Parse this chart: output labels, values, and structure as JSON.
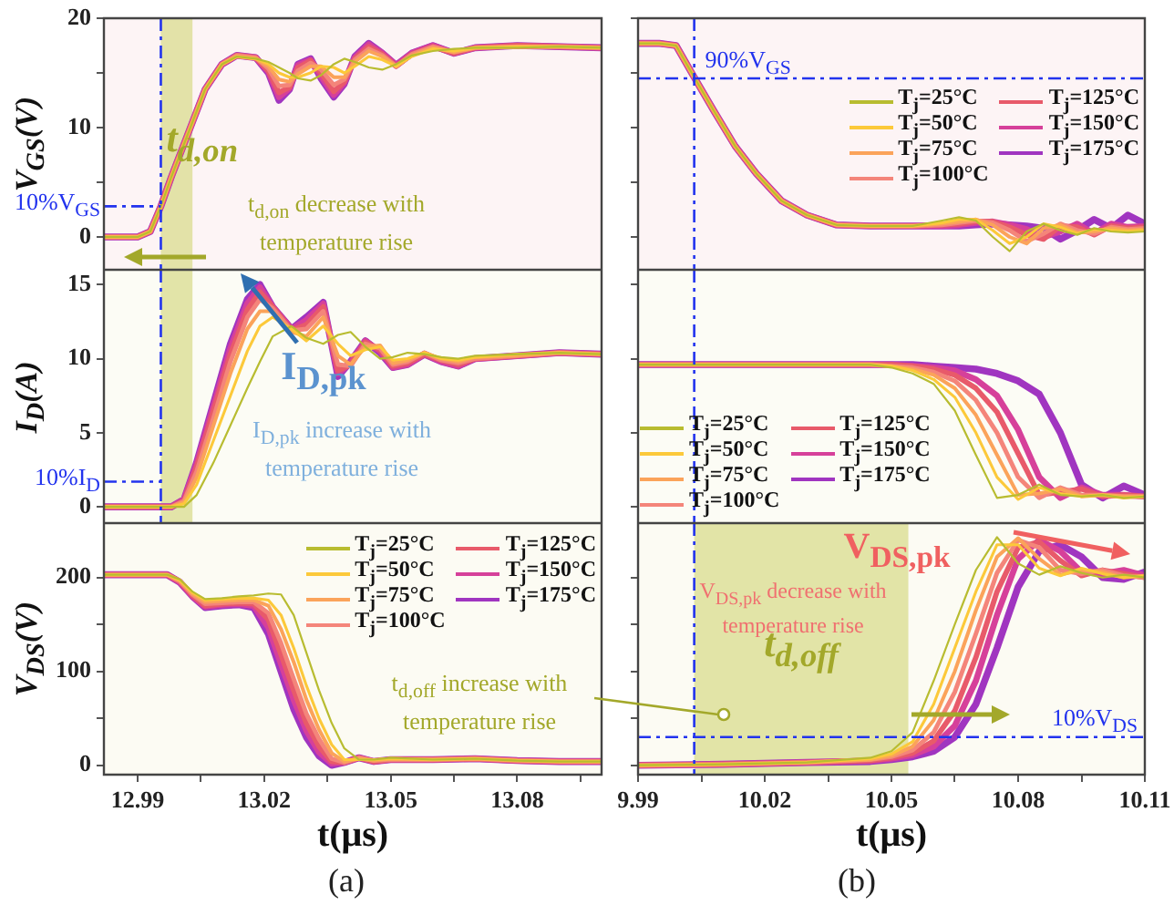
{
  "chart_data": [
    {
      "type": "line",
      "ylabel": "V$_{GS}$(V)",
      "tick_labels": "y",
      "xlim": [
        12.982,
        13.1
      ],
      "xticks": [
        12.99,
        {
          "value": 13.005,
          "label": null
        },
        13.02,
        {
          "value": 13.035,
          "label": null
        },
        13.05,
        {
          "value": 13.065,
          "label": null
        },
        13.08,
        {
          "value": 13.095,
          "label": null
        }
      ],
      "ylim": [
        -3,
        20
      ],
      "yticks": [
        0,
        {
          "value": 5,
          "label": null
        },
        10,
        {
          "value": 15,
          "label": null
        },
        20
      ],
      "x": [
        12.982,
        12.99,
        12.993,
        12.9955,
        12.998,
        13.0005,
        13.003,
        13.006,
        13.01,
        13.0135,
        13.018,
        13.021,
        13.0235,
        13.026,
        13.028,
        13.031,
        13.0335,
        13.0365,
        13.039,
        13.0415,
        13.0448,
        13.048,
        13.0513,
        13.055,
        13.06,
        13.065,
        13.07,
        13.08,
        13.09,
        13.1
      ],
      "series": [
        {
          "color": "#b8bc30",
          "values": [
            0,
            0,
            0.5,
            2.8,
            5.5,
            8,
            10.5,
            13.5,
            15.8,
            16.5,
            16.3,
            16,
            15.5,
            15,
            14.5,
            14.3,
            14.8,
            15.8,
            16.3,
            16,
            15.5,
            15.3,
            15.8,
            16.6,
            17,
            17.2,
            17.3,
            17.3,
            17.4,
            17.3
          ]
        },
        {
          "color": "#fcc93a",
          "values": [
            0,
            0,
            0.5,
            2.8,
            5.5,
            8,
            10.5,
            13.5,
            15.8,
            16.5,
            16.3,
            15.8,
            15,
            14.6,
            14.6,
            15,
            15.6,
            15.5,
            15,
            15.6,
            16.5,
            16.2,
            15.6,
            16.5,
            17.2,
            17,
            17.3,
            17.4,
            17.4,
            17.3
          ]
        },
        {
          "color": "#fba35a",
          "values": [
            0,
            0,
            0.5,
            2.8,
            5.5,
            8,
            10.5,
            13.5,
            15.8,
            16.5,
            16.3,
            15.6,
            14.4,
            14.2,
            14.9,
            15.6,
            15.6,
            14.6,
            14.6,
            16,
            17,
            16.5,
            15.6,
            16.6,
            17.3,
            16.9,
            17.3,
            17.4,
            17.4,
            17.3
          ]
        },
        {
          "color": "#f4857a",
          "values": [
            0,
            0,
            0.5,
            2.8,
            5.5,
            8,
            10.5,
            13.5,
            15.8,
            16.6,
            16.4,
            15.4,
            13.8,
            13.9,
            15.2,
            15.9,
            15.3,
            13.9,
            14.4,
            16.2,
            17.2,
            16.6,
            15.6,
            16.7,
            17.4,
            16.9,
            17.3,
            17.4,
            17.4,
            17.3
          ]
        },
        {
          "color": "#e85a6a",
          "values": [
            0,
            0,
            0.5,
            2.8,
            5.5,
            8,
            10.5,
            13.5,
            15.8,
            16.6,
            16.4,
            15.2,
            13.2,
            13.7,
            15.5,
            16.1,
            15,
            13.3,
            14.2,
            16.3,
            17.4,
            16.7,
            15.6,
            16.7,
            17.4,
            16.8,
            17.3,
            17.5,
            17.4,
            17.3
          ]
        },
        {
          "color": "#d6409a",
          "values": [
            0,
            0,
            0.5,
            2.8,
            5.5,
            8,
            10.5,
            13.5,
            15.8,
            16.6,
            16.4,
            15.1,
            12.8,
            13.6,
            15.7,
            16.2,
            14.7,
            13,
            14.1,
            16.4,
            17.6,
            16.8,
            15.7,
            16.8,
            17.5,
            16.8,
            17.3,
            17.5,
            17.4,
            17.3
          ]
        },
        {
          "color": "#a035c0",
          "values": [
            0,
            0,
            0.5,
            2.8,
            5.5,
            8,
            10.5,
            13.5,
            15.8,
            16.6,
            16.4,
            15,
            12.5,
            13.5,
            15.8,
            16.3,
            14.5,
            12.8,
            14,
            16.5,
            17.7,
            16.8,
            15.7,
            16.8,
            17.5,
            16.8,
            17.3,
            17.5,
            17.4,
            17.3
          ]
        }
      ],
      "ref_lines": [
        {
          "axis": "y",
          "value": 2.8,
          "label": "10%V$_{GS}$",
          "color": "#2233ee",
          "line_style": "dashed"
        },
        {
          "axis": "x",
          "value": 12.9955,
          "color": "#2233ee",
          "line_style": "dashed"
        }
      ],
      "bands": [
        {
          "axis": "x",
          "from": 12.9955,
          "to": 13.003,
          "label": "t$_{d,on}$",
          "color": "#d9dc8e"
        }
      ],
      "annotations": [
        "t$_{d,on}$ decrease with temperature rise"
      ]
    },
    {
      "type": "line",
      "tick_labels": false,
      "legend": "top right",
      "xlim": [
        9.99,
        10.11
      ],
      "xticks": [
        9.99,
        {
          "value": 10.005,
          "label": null
        },
        10.02,
        {
          "value": 10.035,
          "label": null
        },
        10.05,
        {
          "value": 10.065,
          "label": null
        },
        10.08,
        {
          "value": 10.095,
          "label": null
        },
        10.11
      ],
      "ylim": [
        -3,
        20
      ],
      "yticks": [
        0,
        {
          "value": 5,
          "label": null
        },
        10,
        {
          "value": 15,
          "label": null
        },
        20
      ],
      "x": [
        9.99,
        9.995,
        9.999,
        10.003,
        10.008,
        10.013,
        10.018,
        10.024,
        10.03,
        10.037,
        10.045,
        10.055,
        10.062,
        10.066,
        10.07,
        10.074,
        10.078,
        10.082,
        10.086,
        10.09,
        10.094,
        10.098,
        10.102,
        10.106,
        10.11
      ],
      "series": [
        {
          "name": "T$_{j}$=25°C",
          "color": "#b8bc30",
          "values": [
            17.7,
            17.7,
            17.5,
            14.8,
            11.5,
            8.3,
            5.8,
            3.3,
            2,
            1.1,
            1,
            1,
            1.5,
            1.8,
            1.5,
            0,
            -1.3,
            0.5,
            1.2,
            0.6,
            0.2,
            0.8,
            0.5,
            0.4,
            0.5
          ]
        },
        {
          "name": "T$_{j}$=50°C",
          "color": "#fcc93a",
          "values": [
            17.7,
            17.7,
            17.5,
            14.8,
            11.5,
            8.3,
            5.8,
            3.3,
            2,
            1.1,
            1,
            1,
            1.3,
            1.6,
            1.6,
            0.6,
            -0.6,
            0,
            1.2,
            0.9,
            0.3,
            0.7,
            0.6,
            0.5,
            0.6
          ]
        },
        {
          "name": "T$_{j}$=75°C",
          "color": "#fba35a",
          "values": [
            17.7,
            17.7,
            17.5,
            14.8,
            11.5,
            8.3,
            5.8,
            3.3,
            2,
            1.1,
            1,
            1,
            1.2,
            1.4,
            1.6,
            1.1,
            0,
            -0.6,
            0.8,
            1.1,
            0.4,
            0.5,
            0.8,
            0.6,
            0.7
          ]
        },
        {
          "name": "T$_{j}$=100°C",
          "color": "#f4857a",
          "values": [
            17.7,
            17.7,
            17.5,
            14.8,
            11.5,
            8.3,
            5.8,
            3.3,
            2,
            1.1,
            1,
            1,
            1.1,
            1.3,
            1.5,
            1.3,
            0.6,
            -0.4,
            0.3,
            1.2,
            0.6,
            0.3,
            0.9,
            0.7,
            0.8
          ]
        },
        {
          "name": "T$_{j}$=125°C",
          "color": "#e85a6a",
          "values": [
            17.7,
            17.7,
            17.5,
            14.8,
            11.5,
            8.3,
            5.8,
            3.3,
            2,
            1.1,
            1,
            1,
            1.1,
            1.2,
            1.4,
            1.4,
            0.9,
            0.2,
            -0.2,
            1,
            0.9,
            0.2,
            1,
            0.8,
            0.9
          ]
        },
        {
          "name": "T$_{j}$=150°C",
          "color": "#d6409a",
          "values": [
            17.7,
            17.7,
            17.5,
            14.8,
            11.5,
            8.3,
            5.8,
            3.3,
            2,
            1.1,
            1,
            1,
            1,
            1.1,
            1.3,
            1.4,
            1.1,
            0.7,
            0,
            0.5,
            1.2,
            0.3,
            1.2,
            0.9,
            1
          ]
        },
        {
          "name": "T$_{j}$=175°C",
          "color": "#a035c0",
          "values": [
            17.7,
            17.7,
            17.5,
            14.8,
            11.5,
            8.3,
            5.8,
            3.3,
            2,
            1.1,
            1,
            1,
            1,
            1,
            1.1,
            1.2,
            1.1,
            1,
            0.8,
            -0.2,
            0.6,
            1.6,
            0.8,
            2,
            1.2
          ]
        }
      ],
      "ref_lines": [
        {
          "axis": "y",
          "value": 14.5,
          "label": "90%V$_{GS}$",
          "color": "#2233ee",
          "line_style": "dashed"
        },
        {
          "axis": "x",
          "value": 10.0033,
          "color": "#2233ee",
          "line_style": "dashed"
        }
      ]
    },
    {
      "type": "line",
      "ylabel": "I$_{D}$(A)",
      "tick_labels": "y",
      "xlim": [
        12.982,
        13.1
      ],
      "xticks": [
        12.99,
        {
          "value": 13.005,
          "label": null
        },
        13.02,
        {
          "value": 13.035,
          "label": null
        },
        13.05,
        {
          "value": 13.065,
          "label": null
        },
        13.08,
        {
          "value": 13.095,
          "label": null
        }
      ],
      "ylim": [
        -1.1,
        16
      ],
      "yticks": [
        0,
        5,
        10,
        15
      ],
      "x": [
        12.982,
        12.99,
        12.998,
        13.001,
        13.004,
        13.008,
        13.012,
        13.016,
        13.019,
        13.022,
        13.0265,
        13.03,
        13.034,
        13.0375,
        13.0405,
        13.044,
        13.0475,
        13.0505,
        13.054,
        13.058,
        13.062,
        13.066,
        13.07,
        13.08,
        13.09,
        13.1
      ],
      "series": [
        {
          "color": "#b8bc30",
          "values": [
            0,
            0,
            0,
            0,
            0.8,
            3,
            5.5,
            8,
            9.8,
            11.5,
            12.2,
            11.4,
            11,
            11.6,
            11.8,
            10.8,
            10,
            10.1,
            10.4,
            10.3,
            10.1,
            10,
            10.2,
            10.3,
            10.4,
            10.3
          ]
        },
        {
          "color": "#fcc93a",
          "values": [
            0,
            0,
            0,
            0.2,
            1.5,
            4.5,
            7.5,
            10.5,
            12.2,
            12.8,
            12,
            11.2,
            12.2,
            11,
            10.2,
            10.6,
            10.8,
            9.9,
            10,
            10.4,
            10,
            9.9,
            10.1,
            10.3,
            10.4,
            10.3
          ]
        },
        {
          "color": "#fba35a",
          "values": [
            0,
            0,
            0,
            0.3,
            2,
            5.5,
            9,
            12,
            13.2,
            13.2,
            11.8,
            11.5,
            12.8,
            10.2,
            9.6,
            10.8,
            10.9,
            9.7,
            9.9,
            10.4,
            10,
            9.8,
            10.1,
            10.2,
            10.4,
            10.3
          ]
        },
        {
          "color": "#f4857a",
          "values": [
            0,
            0,
            0,
            0.4,
            2.4,
            6,
            9.8,
            12.8,
            14,
            13.4,
            11.9,
            12,
            13.2,
            9.6,
            9.5,
            11,
            10.7,
            9.6,
            9.8,
            10.4,
            9.9,
            9.7,
            10,
            10.2,
            10.4,
            10.3
          ]
        },
        {
          "color": "#e85a6a",
          "values": [
            0,
            0,
            0,
            0.4,
            2.7,
            6.5,
            10.3,
            13.3,
            14.5,
            13.5,
            11.9,
            12.3,
            13.5,
            9.2,
            9.6,
            11.1,
            10.6,
            9.5,
            9.7,
            10.3,
            9.9,
            9.6,
            10,
            10.2,
            10.4,
            10.3
          ]
        },
        {
          "color": "#d6409a",
          "values": [
            0,
            0,
            0,
            0.5,
            2.9,
            6.8,
            10.7,
            13.7,
            14.8,
            13.5,
            12,
            12.6,
            13.7,
            9,
            9.7,
            11.2,
            10.5,
            9.4,
            9.6,
            10.3,
            9.8,
            9.5,
            10,
            10.2,
            10.4,
            10.3
          ]
        },
        {
          "color": "#a035c0",
          "values": [
            0,
            0,
            0,
            0.5,
            3,
            7,
            11,
            14,
            15,
            13.5,
            12,
            12.8,
            13.8,
            8.8,
            9.8,
            11.2,
            10.4,
            9.4,
            9.6,
            10.3,
            9.8,
            9.5,
            10,
            10.2,
            10.4,
            10.3
          ]
        }
      ],
      "ref_lines": [
        {
          "axis": "y",
          "value": 1.7,
          "label": "10%I$_{D}$",
          "color": "#2233ee",
          "line_style": "dashed"
        },
        {
          "axis": "x",
          "value": 12.9955,
          "color": "#2233ee",
          "line_style": "dashed"
        }
      ],
      "bands": [
        {
          "axis": "x",
          "from": 12.9955,
          "to": 13.003,
          "color": "#d9dc8e"
        }
      ],
      "annotations": [
        "I$_{D,pk}$",
        "I$_{D,pk}$ increase with temperature rise"
      ]
    },
    {
      "type": "line",
      "tick_labels": false,
      "legend": "bottom left",
      "xlim": [
        9.99,
        10.11
      ],
      "xticks": [
        9.99,
        {
          "value": 10.005,
          "label": null
        },
        10.02,
        {
          "value": 10.035,
          "label": null
        },
        10.05,
        {
          "value": 10.065,
          "label": null
        },
        10.08,
        {
          "value": 10.095,
          "label": null
        },
        10.11
      ],
      "ylim": [
        -1.1,
        16
      ],
      "yticks": [
        0,
        5,
        10,
        15
      ],
      "x": [
        9.99,
        10.03,
        10.045,
        10.05,
        10.055,
        10.06,
        10.065,
        10.07,
        10.075,
        10.08,
        10.085,
        10.09,
        10.095,
        10.1,
        10.105,
        10.11
      ],
      "series": [
        {
          "name": "T$_{j}$=25°C",
          "color": "#b8bc30",
          "values": [
            9.6,
            9.6,
            9.6,
            9.4,
            9,
            8.3,
            6.5,
            3.5,
            0.6,
            0.8,
            1.5,
            0.8,
            0.7,
            0.8,
            0.6,
            0.7
          ]
        },
        {
          "name": "T$_{j}$=50°C",
          "color": "#fcc93a",
          "values": [
            9.6,
            9.6,
            9.6,
            9.5,
            9.2,
            8.6,
            7.4,
            5,
            2,
            0.5,
            1.3,
            0.9,
            0.7,
            0.8,
            0.6,
            0.7
          ]
        },
        {
          "name": "T$_{j}$=75°C",
          "color": "#fba35a",
          "values": [
            9.6,
            9.6,
            9.6,
            9.5,
            9.3,
            8.9,
            8,
            6.2,
            3.5,
            0.8,
            0.9,
            1.2,
            0.7,
            0.8,
            0.7,
            0.7
          ]
        },
        {
          "name": "T$_{j}$=100°C",
          "color": "#f4857a",
          "values": [
            9.6,
            9.6,
            9.6,
            9.5,
            9.4,
            9.1,
            8.5,
            7.2,
            5,
            2,
            0.6,
            1.3,
            0.8,
            0.8,
            0.7,
            0.7
          ]
        },
        {
          "name": "T$_{j}$=125°C",
          "color": "#e85a6a",
          "values": [
            9.6,
            9.6,
            9.6,
            9.6,
            9.5,
            9.3,
            8.9,
            8,
            6.4,
            3.6,
            0.8,
            1,
            1.2,
            0.7,
            0.8,
            0.7
          ]
        },
        {
          "name": "T$_{j}$=150°C",
          "color": "#d6409a",
          "values": [
            9.6,
            9.6,
            9.6,
            9.6,
            9.5,
            9.4,
            9.2,
            8.6,
            7.5,
            5.2,
            2,
            0.6,
            1.3,
            0.8,
            0.8,
            0.7
          ]
        },
        {
          "name": "T$_{j}$=175°C",
          "color": "#a035c0",
          "values": [
            9.6,
            9.6,
            9.6,
            9.6,
            9.6,
            9.5,
            9.4,
            9.3,
            9,
            8.5,
            7.6,
            5,
            1.5,
            0.6,
            1.4,
            0.8
          ]
        }
      ],
      "ref_lines": [
        {
          "axis": "x",
          "value": 10.0033,
          "color": "#2233ee",
          "line_style": "dashed"
        }
      ]
    },
    {
      "type": "line",
      "xlabel": "t(μs)",
      "ylabel": "V$_{DS}$(V)",
      "legend": "top right",
      "xlim": [
        12.982,
        13.1
      ],
      "xticks": [
        12.99,
        {
          "value": 13.005,
          "label": null
        },
        13.02,
        {
          "value": 13.035,
          "label": null
        },
        13.05,
        {
          "value": 13.065,
          "label": null
        },
        13.08,
        {
          "value": 13.095,
          "label": null
        }
      ],
      "ylim": [
        -10,
        258
      ],
      "yticks": [
        0,
        {
          "value": 50,
          "label": null
        },
        100,
        {
          "value": 150,
          "label": null
        },
        200
      ],
      "x": [
        12.982,
        12.99,
        12.997,
        13.0,
        13.003,
        13.006,
        13.01,
        13.014,
        13.0175,
        13.021,
        13.024,
        13.027,
        13.03,
        13.033,
        13.036,
        13.039,
        13.0425,
        13.046,
        13.05,
        13.06,
        13.07,
        13.08,
        13.09,
        13.1
      ],
      "series": [
        {
          "name": "T$_{j}$=25°C",
          "color": "#b8bc30",
          "values": [
            203,
            203,
            203,
            198,
            185,
            177,
            178,
            180,
            181,
            183,
            182,
            160,
            120,
            80,
            45,
            18,
            6,
            6,
            8,
            6,
            7,
            5,
            4,
            4
          ]
        },
        {
          "name": "T$_{j}$=50°C",
          "color": "#fcc93a",
          "values": [
            203,
            203,
            203,
            197,
            184,
            176,
            177,
            178,
            178,
            176,
            160,
            125,
            85,
            50,
            22,
            6,
            6,
            6,
            7,
            6,
            7,
            5,
            4,
            4
          ]
        },
        {
          "name": "T$_{j}$=75°C",
          "color": "#fba35a",
          "values": [
            203,
            203,
            203,
            197,
            183,
            174,
            175,
            176,
            176,
            170,
            145,
            110,
            70,
            38,
            13,
            4,
            7,
            5,
            7,
            6,
            7,
            5,
            4,
            4
          ]
        },
        {
          "name": "T$_{j}$=100°C",
          "color": "#f4857a",
          "values": [
            203,
            203,
            203,
            196,
            182,
            172,
            173,
            174,
            174,
            162,
            130,
            92,
            55,
            28,
            7,
            3,
            8,
            5,
            6,
            6,
            7,
            5,
            4,
            4
          ]
        },
        {
          "name": "T$_{j}$=125°C",
          "color": "#e85a6a",
          "values": [
            203,
            203,
            203,
            196,
            181,
            170,
            172,
            173,
            172,
            155,
            118,
            80,
            45,
            20,
            4,
            3,
            8,
            4,
            6,
            6,
            7,
            5,
            4,
            4
          ]
        },
        {
          "name": "T$_{j}$=150°C",
          "color": "#d6409a",
          "values": [
            203,
            203,
            203,
            195,
            180,
            169,
            171,
            172,
            170,
            147,
            108,
            70,
            37,
            14,
            2,
            3,
            8,
            4,
            6,
            6,
            7,
            5,
            4,
            4
          ]
        },
        {
          "name": "T$_{j}$=175°C",
          "color": "#a035c0",
          "values": [
            203,
            203,
            203,
            195,
            180,
            168,
            170,
            171,
            168,
            140,
            100,
            60,
            30,
            10,
            0,
            3,
            8,
            4,
            6,
            6,
            7,
            5,
            4,
            4
          ]
        }
      ],
      "annotations": [
        "t$_{d,off}$ increase with temperature rise",
        "(a)"
      ]
    },
    {
      "type": "line",
      "xlabel": "t(μs)",
      "tick_labels": "x",
      "xlim": [
        9.99,
        10.11
      ],
      "xticks": [
        9.99,
        {
          "value": 10.005,
          "label": null
        },
        10.02,
        {
          "value": 10.035,
          "label": null
        },
        10.05,
        {
          "value": 10.065,
          "label": null
        },
        10.08,
        {
          "value": 10.095,
          "label": null
        },
        10.11
      ],
      "ylim": [
        -10,
        258
      ],
      "yticks": [
        0,
        {
          "value": 50,
          "label": null
        },
        100,
        {
          "value": 150,
          "label": null
        },
        200
      ],
      "x": [
        9.99,
        10.01,
        10.03,
        10.045,
        10.05,
        10.055,
        10.06,
        10.065,
        10.07,
        10.075,
        10.08,
        10.085,
        10.09,
        10.095,
        10.1,
        10.105,
        10.11
      ],
      "series": [
        {
          "color": "#b8bc30",
          "values": [
            0,
            1,
            3,
            8,
            15,
            35,
            90,
            150,
            208,
            243,
            215,
            203,
            212,
            205,
            200,
            203,
            200
          ]
        },
        {
          "color": "#fcc93a",
          "values": [
            0,
            1,
            3,
            7,
            12,
            25,
            65,
            125,
            185,
            235,
            235,
            210,
            202,
            210,
            204,
            200,
            202
          ]
        },
        {
          "color": "#fba35a",
          "values": [
            0,
            1,
            3,
            6,
            10,
            20,
            48,
            100,
            165,
            222,
            242,
            220,
            203,
            208,
            206,
            200,
            202
          ]
        },
        {
          "color": "#f4857a",
          "values": [
            0,
            1,
            3,
            6,
            9,
            16,
            35,
            78,
            140,
            205,
            240,
            232,
            208,
            204,
            208,
            202,
            200
          ]
        },
        {
          "color": "#e85a6a",
          "values": [
            0,
            1,
            3,
            5,
            8,
            13,
            26,
            58,
            115,
            185,
            232,
            238,
            218,
            202,
            208,
            204,
            200
          ]
        },
        {
          "color": "#d6409a",
          "values": [
            0,
            1,
            3,
            5,
            7,
            11,
            20,
            42,
            90,
            160,
            220,
            240,
            228,
            206,
            204,
            208,
            202
          ]
        },
        {
          "color": "#a035c0",
          "values": [
            0,
            1,
            3,
            4,
            6,
            9,
            15,
            30,
            65,
            125,
            190,
            228,
            235,
            222,
            200,
            198,
            206
          ]
        }
      ],
      "ref_lines": [
        {
          "axis": "y",
          "value": 30,
          "label": "10%V$_{DS}$",
          "color": "#2233ee",
          "line_style": "dashed"
        },
        {
          "axis": "x",
          "value": 10.0033,
          "color": "#2233ee",
          "line_style": "dashed"
        }
      ],
      "bands": [
        {
          "axis": "x",
          "from": 10.0033,
          "to": 10.054,
          "label": "t$_{d,off}$",
          "color": "#d9dc8e"
        }
      ],
      "annotations": [
        "V$_{DS,pk}$",
        "V$_{DS,pk}$ decrease with temperature rise",
        "(b)"
      ]
    }
  ]
}
